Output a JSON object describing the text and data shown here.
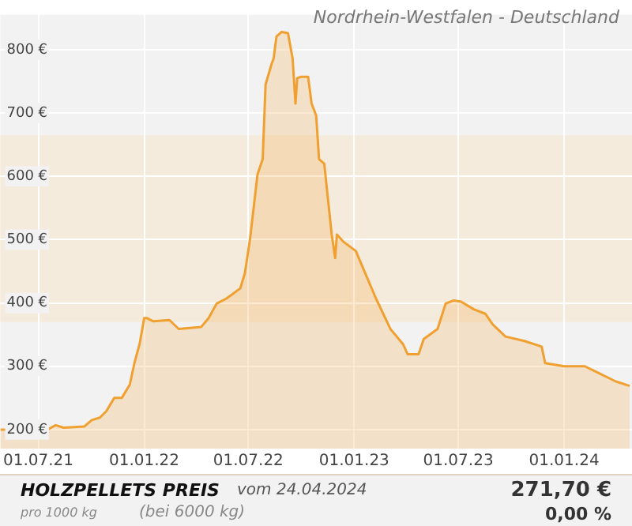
{
  "chart_data": {
    "type": "area",
    "title": "Nordrhein-Westfalen - Deutschland",
    "x": [
      "2021-04-26",
      "2021-07-17",
      "2021-07-31",
      "2021-08-14",
      "2021-09-19",
      "2021-10-02",
      "2021-10-16",
      "2021-10-27",
      "2021-11-10",
      "2021-11-23",
      "2021-12-07",
      "2021-12-15",
      "2021-12-24",
      "2022-01-01",
      "2022-01-06",
      "2022-01-17",
      "2022-02-14",
      "2022-03-02",
      "2022-04-10",
      "2022-04-23",
      "2022-05-07",
      "2022-05-24",
      "2022-06-17",
      "2022-06-25",
      "2022-07-04",
      "2022-07-17",
      "2022-07-26",
      "2022-07-31",
      "2022-08-11",
      "2022-08-14",
      "2022-08-19",
      "2022-08-28",
      "2022-09-08",
      "2022-09-16",
      "2022-09-21",
      "2022-09-24",
      "2022-09-30",
      "2022-10-13",
      "2022-10-19",
      "2022-10-27",
      "2022-11-01",
      "2022-11-10",
      "2022-11-23",
      "2022-11-29",
      "2022-12-02",
      "2022-12-13",
      "2023-01-04",
      "2023-01-17",
      "2023-02-08",
      "2023-03-05",
      "2023-03-27",
      "2023-04-04",
      "2023-04-23",
      "2023-05-02",
      "2023-05-26",
      "2023-06-09",
      "2023-06-23",
      "2023-07-06",
      "2023-07-28",
      "2023-08-17",
      "2023-08-30",
      "2023-09-21",
      "2023-10-24",
      "2023-11-23",
      "2023-11-29",
      "2024-01-01",
      "2024-02-06",
      "2024-03-04",
      "2024-03-31",
      "2024-04-24"
    ],
    "series": [
      {
        "color": "#f0a030",
        "values": [
          200,
          200,
          207,
          203,
          205,
          215,
          219,
          229,
          250,
          250,
          271,
          305,
          335,
          376,
          376,
          371,
          373,
          359,
          362,
          376,
          399,
          407,
          423,
          447,
          501,
          603,
          627,
          745,
          779,
          786,
          821,
          828,
          826,
          786,
          715,
          755,
          757,
          757,
          715,
          696,
          627,
          620,
          508,
          471,
          508,
          497,
          482,
          454,
          407,
          359,
          335,
          319,
          319,
          343,
          359,
          399,
          404,
          402,
          390,
          383,
          366,
          347,
          340,
          331,
          305,
          300,
          300,
          288,
          276,
          269
        ]
      }
    ],
    "xlim": [
      "2021-04-26",
      "2024-04-28"
    ],
    "xticks": [
      {
        "value": "2021-07-01",
        "label": "01.07.21"
      },
      {
        "value": "2022-01-01",
        "label": "01.01.22"
      },
      {
        "value": "2022-07-01",
        "label": "01.07.22"
      },
      {
        "value": "2023-01-01",
        "label": "01.01.23"
      },
      {
        "value": "2023-07-01",
        "label": "01.07.23"
      },
      {
        "value": "2024-01-01",
        "label": "01.01.24"
      }
    ],
    "ylim": [
      170,
      855
    ],
    "yticks": [
      {
        "value": 200,
        "label": "200 €"
      },
      {
        "value": 300,
        "label": "300 €"
      },
      {
        "value": 400,
        "label": "400 €"
      },
      {
        "value": 500,
        "label": "500 €"
      },
      {
        "value": 600,
        "label": "600 €"
      },
      {
        "value": 700,
        "label": "700 €"
      },
      {
        "value": 800,
        "label": "800 €"
      }
    ],
    "bands": [
      {
        "axis": "y",
        "from": 370,
        "to": 665,
        "color": "#f5ebdc"
      }
    ],
    "grid": true,
    "legend": false,
    "marker": "none",
    "line_style": "solid",
    "annotations": [
      "HOLZPELLETS PREIS",
      "vom 24.04.2024",
      "pro 1000 kg",
      "(bei 6000 kg)",
      "271,70 €",
      "0,00 %"
    ]
  }
}
